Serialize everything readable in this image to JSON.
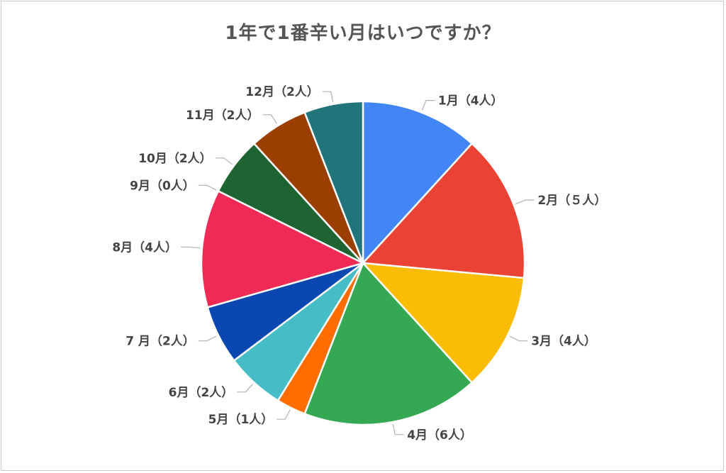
{
  "chart_data": {
    "type": "pie",
    "title": "1年で1番辛い月はいつですか？",
    "categories": [
      "1月",
      "2月",
      "3月",
      "4月",
      "5月",
      "6月",
      "7月",
      "8月",
      "9月",
      "10月",
      "11月",
      "12月"
    ],
    "values": [
      4,
      5,
      4,
      6,
      1,
      2,
      2,
      4,
      0,
      2,
      2,
      2
    ],
    "labels": [
      "1月（4人）",
      "2月（５人）",
      "3月（4人）",
      "4月（6人）",
      "5月（1人）",
      "6月（2人）",
      "7 月（2人）",
      "8月（4人）",
      "9月（0人）",
      "10月（2人）",
      "11月（2人）",
      "12月（2人）"
    ],
    "colors": [
      "#4285f4",
      "#ea4335",
      "#fbbc04",
      "#34a853",
      "#ff6d01",
      "#46bdc6",
      "#0b47b0",
      "#ee2a55",
      "#9aa0a6",
      "#1e6432",
      "#9a3f00",
      "#21757a"
    ],
    "legend": "none"
  }
}
